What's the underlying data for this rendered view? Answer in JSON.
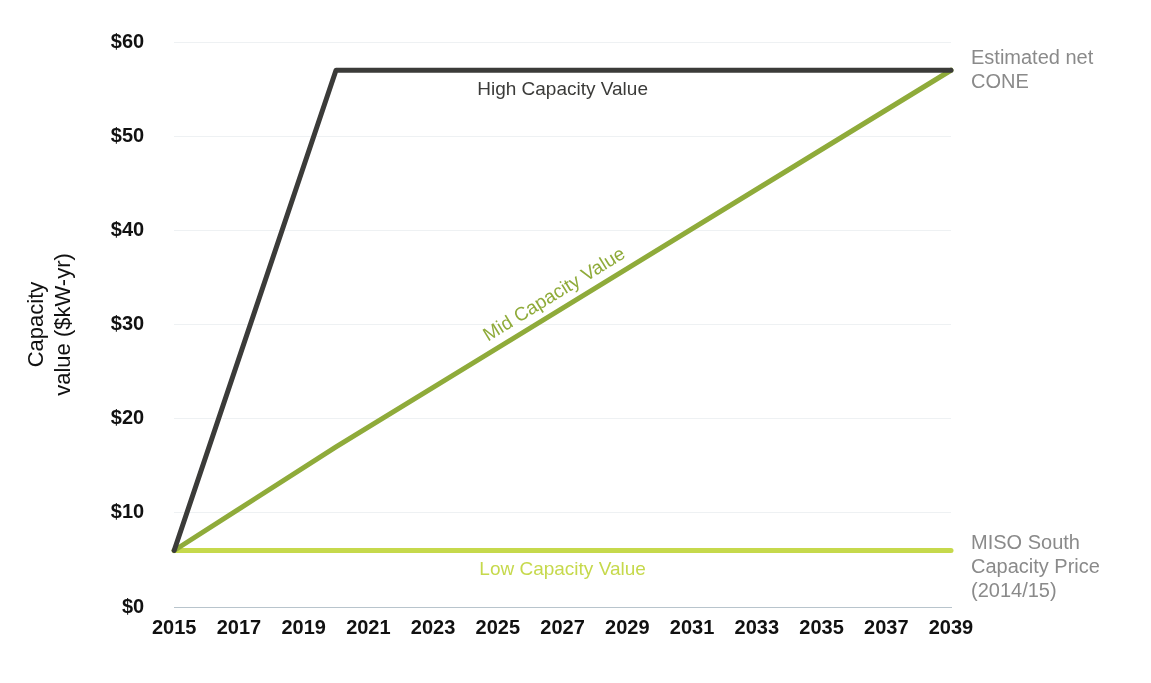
{
  "chart_data": {
    "type": "line",
    "ylabel": "Capacity value ($kW-yr)",
    "x": [
      2015,
      2020,
      2039
    ],
    "series": [
      {
        "name": "High Capacity Value",
        "color": "#3b3b39",
        "values": [
          6,
          57,
          57
        ]
      },
      {
        "name": "Mid Capacity Value",
        "color": "#8fab3a",
        "values": [
          6,
          17,
          57
        ]
      },
      {
        "name": "Low Capacity Value",
        "color": "#c6d94c",
        "values": [
          6,
          6,
          6
        ]
      }
    ],
    "xlim": [
      2015,
      2039
    ],
    "xticks": [
      2015,
      2017,
      2019,
      2021,
      2023,
      2025,
      2027,
      2029,
      2031,
      2033,
      2035,
      2037,
      2039
    ],
    "ylim": [
      0,
      60
    ],
    "yticks": [
      {
        "value": 0,
        "label": "$0"
      },
      {
        "value": 10,
        "label": "$10"
      },
      {
        "value": 20,
        "label": "$20"
      },
      {
        "value": 30,
        "label": "$30"
      },
      {
        "value": 40,
        "label": "$40"
      },
      {
        "value": 50,
        "label": "$50"
      },
      {
        "value": 60,
        "label": "$60"
      }
    ],
    "grid": "y",
    "legend": false,
    "marker": "none",
    "line_style": "solid",
    "annotations": [
      {
        "text": "Estimated net CONE",
        "x": 2039,
        "y": 57
      },
      {
        "text": "MISO South Capacity Price (2014/15)",
        "x": 2039,
        "y": 6
      }
    ]
  }
}
